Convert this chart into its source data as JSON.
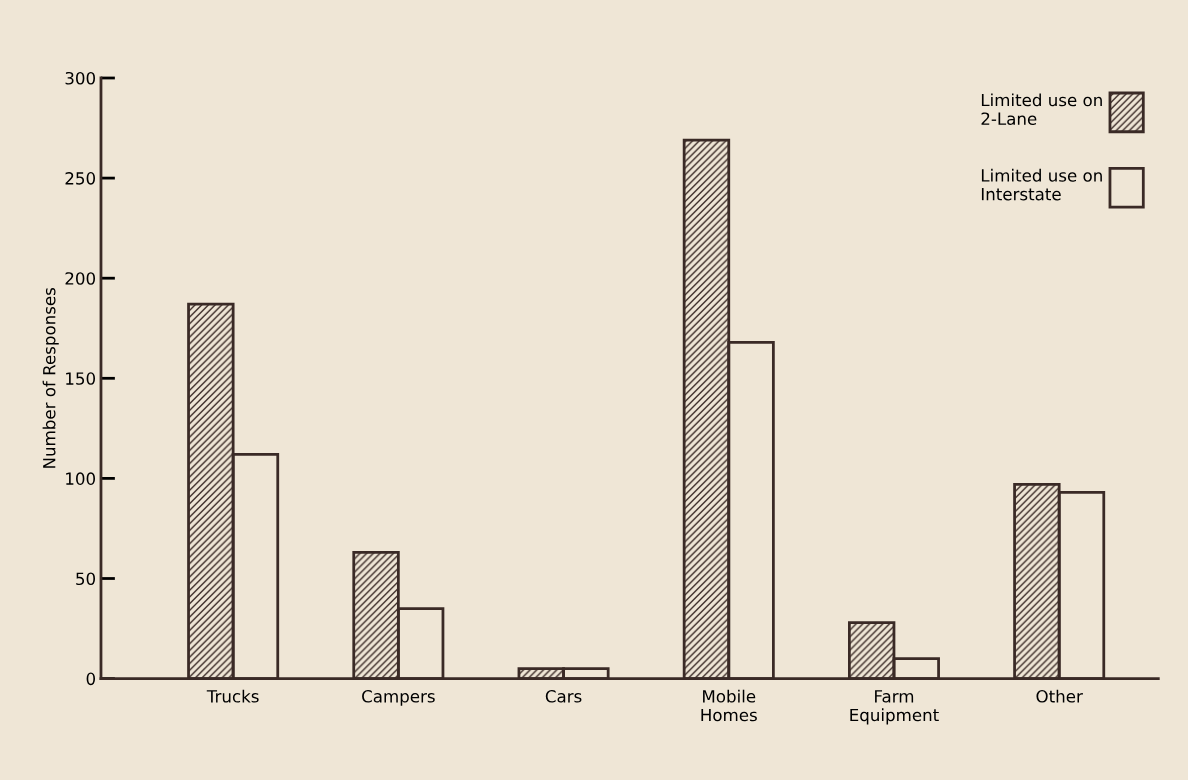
{
  "chart_data": {
    "type": "bar",
    "ylabel": "Number of Responses",
    "categories": [
      "Trucks",
      "Campers",
      "Cars",
      "Mobile\nHomes",
      "Farm\nEquipment",
      "Other"
    ],
    "series": [
      {
        "name": "Limited use on\n2-Lane",
        "color": "#3a2a26",
        "values": [
          187,
          63,
          5,
          269,
          28,
          97
        ]
      },
      {
        "name": "Limited use on\nInterstate",
        "color": "#3a2a26",
        "values": [
          112,
          35,
          5,
          168,
          10,
          93
        ]
      }
    ],
    "ylim": [
      0,
      300
    ],
    "yticks": [
      0,
      50,
      100,
      150,
      200,
      250,
      300
    ],
    "grid": false,
    "legend": "top right"
  }
}
